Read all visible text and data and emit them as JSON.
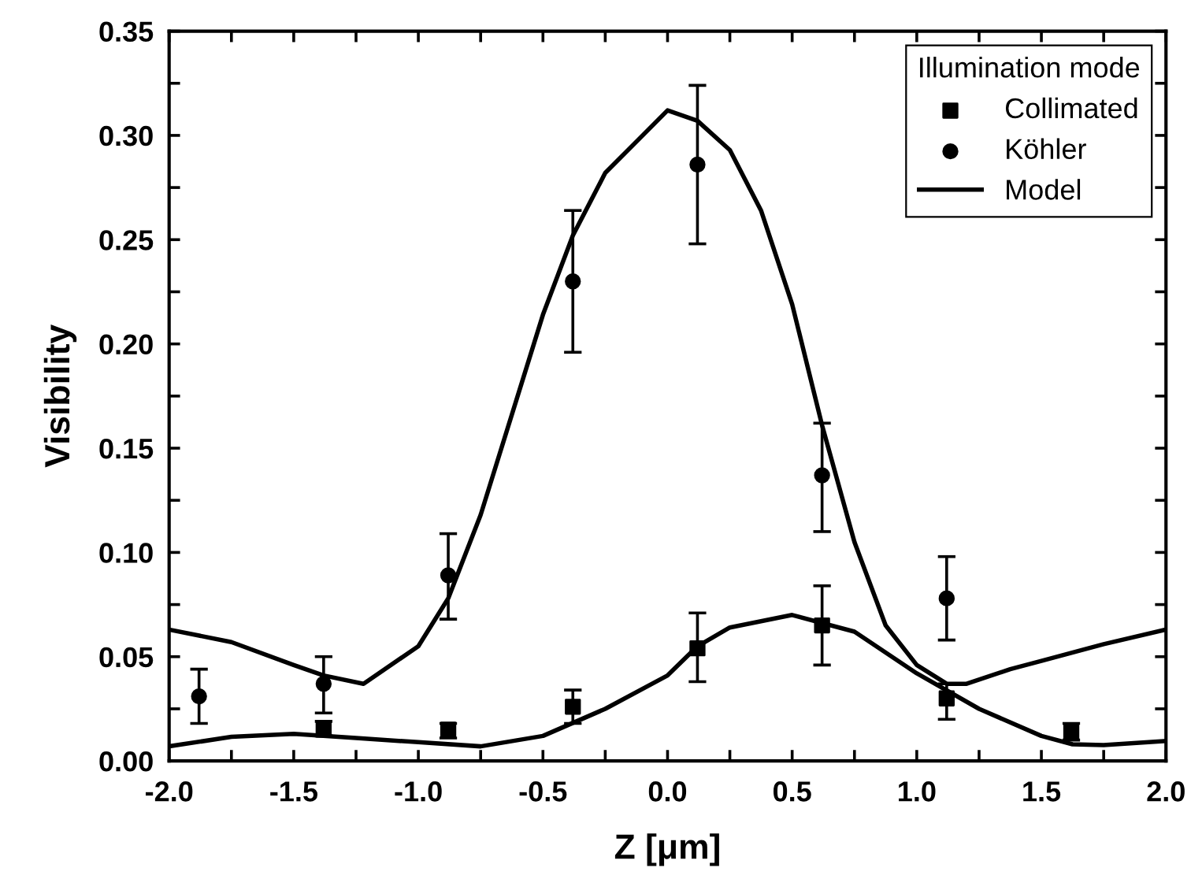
{
  "chart_data": {
    "type": "scatter",
    "xlabel": "Z [μm]",
    "ylabel": "Visibility",
    "legend_title": "Illumination mode",
    "legend": "top right",
    "grid": false,
    "xlim": [
      -2.0,
      2.0
    ],
    "ylim": [
      0.0,
      0.35
    ],
    "xticks": [
      {
        "value": -2.0,
        "label": "-2.0"
      },
      {
        "value": -1.75,
        "label": null
      },
      {
        "value": -1.5,
        "label": "-1.5"
      },
      {
        "value": -1.25,
        "label": null
      },
      {
        "value": -1.0,
        "label": "-1.0"
      },
      {
        "value": -0.75,
        "label": null
      },
      {
        "value": -0.5,
        "label": "-0.5"
      },
      {
        "value": -0.25,
        "label": null
      },
      {
        "value": 0.0,
        "label": "0.0"
      },
      {
        "value": 0.25,
        "label": null
      },
      0.5,
      {
        "value": 0.75,
        "label": null
      },
      {
        "value": 1.0,
        "label": "1.0"
      },
      {
        "value": 1.25,
        "label": null
      },
      1.5,
      {
        "value": 1.75,
        "label": null
      },
      {
        "value": 2.0,
        "label": "2.0"
      }
    ],
    "yticks": [
      {
        "value": 0.0,
        "label": "0.00"
      },
      {
        "value": 0.025,
        "label": null
      },
      0.05,
      {
        "value": 0.075,
        "label": null
      },
      {
        "value": 0.1,
        "label": "0.10"
      },
      {
        "value": 0.125,
        "label": null
      },
      0.15,
      {
        "value": 0.175,
        "label": null
      },
      {
        "value": 0.2,
        "label": "0.20"
      },
      {
        "value": 0.225,
        "label": null
      },
      0.25,
      {
        "value": 0.275,
        "label": null
      },
      {
        "value": 0.3,
        "label": "0.30"
      },
      {
        "value": 0.325,
        "label": null
      },
      0.35
    ],
    "series": [
      {
        "name": "Collimated",
        "marker": "square",
        "color": "#000000",
        "x": [
          -1.38,
          -0.88,
          -0.38,
          0.12,
          0.62,
          1.12,
          1.62
        ],
        "values": [
          0.015,
          0.015,
          0.026,
          0.054,
          0.065,
          0.03,
          0.014
        ],
        "errors": [
          [
            0.012,
            0.019
          ],
          [
            0.011,
            0.018
          ],
          [
            0.018,
            0.034
          ],
          [
            0.038,
            0.071
          ],
          [
            0.046,
            0.084
          ],
          [
            0.02,
            0.037
          ],
          [
            0.01,
            0.018
          ]
        ]
      },
      {
        "name": "Köhler",
        "marker": "circle",
        "color": "#000000",
        "x": [
          -1.88,
          -1.38,
          -0.88,
          -0.38,
          0.12,
          0.62,
          1.12
        ],
        "values": [
          0.031,
          0.037,
          0.089,
          0.23,
          0.286,
          0.137,
          0.078
        ],
        "errors": [
          [
            0.018,
            0.044
          ],
          [
            0.023,
            0.05
          ],
          [
            0.068,
            0.109
          ],
          [
            0.196,
            0.264
          ],
          [
            0.248,
            0.324
          ],
          [
            0.11,
            0.162
          ],
          [
            0.058,
            0.098
          ]
        ]
      },
      {
        "name": "Model",
        "type": "line",
        "line_style": "solid",
        "color": "#000000",
        "x": [
          -2.0,
          -1.75,
          -1.5,
          -1.38,
          -1.22,
          -1.0,
          -0.88,
          -0.75,
          -0.5,
          -0.38,
          -0.25,
          -0.125,
          0.0,
          0.12,
          0.25,
          0.375,
          0.5,
          0.62,
          0.75,
          0.875,
          1.0,
          1.12,
          1.2,
          1.375,
          1.5,
          1.75,
          2.0
        ],
        "values": [
          0.063,
          0.057,
          0.046,
          0.041,
          0.037,
          0.055,
          0.078,
          0.118,
          0.214,
          0.252,
          0.282,
          0.297,
          0.312,
          0.307,
          0.293,
          0.264,
          0.219,
          0.161,
          0.105,
          0.065,
          0.046,
          0.037,
          0.037,
          0.044,
          0.048,
          0.056,
          0.063
        ]
      },
      {
        "type": "line",
        "line_style": "solid",
        "color": "#000000",
        "x": [
          -2.0,
          -1.75,
          -1.5,
          -1.25,
          -1.0,
          -0.75,
          -0.5,
          -0.25,
          0.0,
          0.12,
          0.25,
          0.5,
          0.75,
          1.0,
          1.25,
          1.5,
          1.625,
          1.75,
          2.0
        ],
        "values": [
          0.007,
          0.0116,
          0.013,
          0.011,
          0.009,
          0.007,
          0.012,
          0.025,
          0.041,
          0.055,
          0.064,
          0.07,
          0.062,
          0.042,
          0.025,
          0.012,
          0.008,
          0.0076,
          0.0096
        ]
      }
    ]
  }
}
